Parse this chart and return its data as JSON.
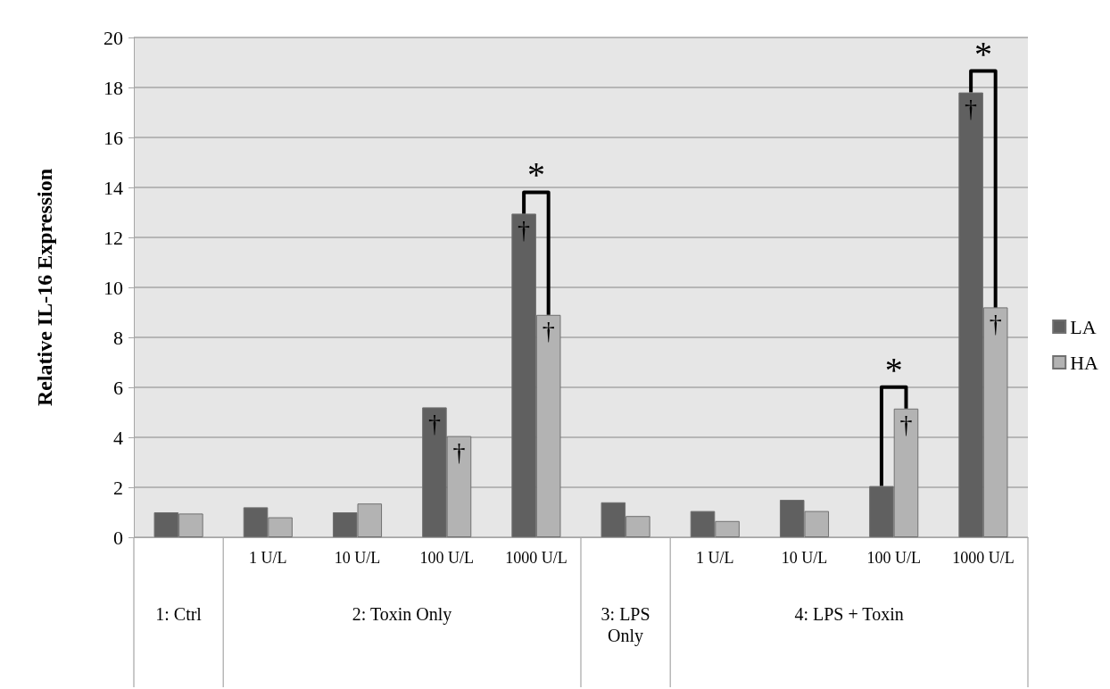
{
  "chart_data": {
    "type": "bar",
    "ylabel": "Relative IL-16 Expression",
    "categories": [
      null,
      "1 U/L",
      "10 U/L",
      "100 U/L",
      "1000 U/L",
      null,
      "1 U/L",
      "10 U/L",
      "100 U/L",
      "1000 U/L"
    ],
    "series": [
      {
        "name": "LA",
        "color": "#606060",
        "values": [
          1.0,
          1.2,
          1.0,
          5.2,
          12.95,
          1.4,
          1.05,
          1.5,
          2.05,
          17.8
        ],
        "value_labels": [
          null,
          null,
          null,
          "†",
          "†",
          null,
          null,
          null,
          null,
          "†"
        ]
      },
      {
        "name": "HA",
        "color": "#b3b3b3",
        "values": [
          0.95,
          0.8,
          1.35,
          4.05,
          8.9,
          0.85,
          0.65,
          1.05,
          5.15,
          9.2
        ],
        "value_labels": [
          null,
          null,
          null,
          "†",
          "†",
          null,
          null,
          null,
          "†",
          "†"
        ]
      }
    ],
    "ylim": [
      0,
      20
    ],
    "yticks": [
      0,
      2,
      4,
      6,
      8,
      10,
      12,
      14,
      16,
      18,
      20
    ],
    "grid": "y",
    "legend": "right",
    "annotations": [
      "1: Ctrl",
      "2: Toxin Only",
      "3: LPS Only",
      "4: LPS + Toxin",
      {
        "text": "*",
        "y": 12.95
      },
      {
        "text": "*",
        "y": 5.15
      },
      {
        "text": "*",
        "y": 17.8
      }
    ]
  }
}
